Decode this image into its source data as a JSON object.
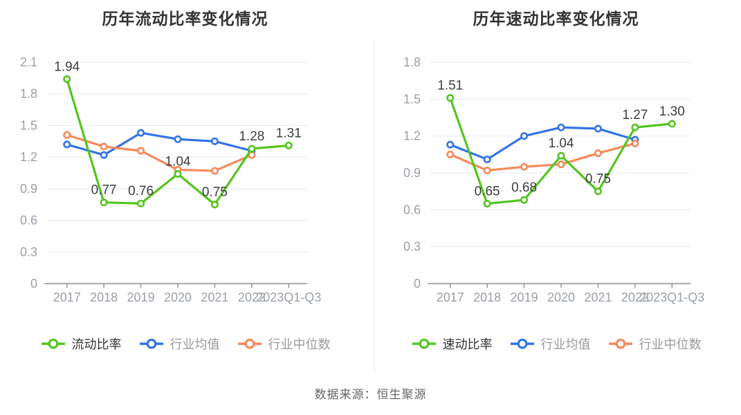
{
  "page": {
    "background": "#ffffff",
    "source_note": "数据来源：恒生聚源"
  },
  "chart_data": [
    {
      "type": "line",
      "title": "历年流动比率变化情况",
      "categories": [
        "2017",
        "2018",
        "2019",
        "2020",
        "2021",
        "2022",
        "2023Q1-Q3"
      ],
      "ylim": [
        0,
        2.1
      ],
      "yticks": [
        "0",
        "0.3",
        "0.6",
        "0.9",
        "1.2",
        "1.5",
        "1.8",
        "2.1"
      ],
      "grid": true,
      "legend_position": "bottom",
      "series": [
        {
          "name": "流动比率",
          "color": "#54c41e",
          "legend_text_color": "#333333",
          "values": [
            1.94,
            0.77,
            0.76,
            1.04,
            0.75,
            1.28,
            1.31
          ],
          "point_labels": [
            "1.94",
            "0.77",
            "0.76",
            "1.04",
            "0.75",
            "1.28",
            "1.31"
          ]
        },
        {
          "name": "行业均值",
          "color": "#3273e8",
          "legend_text_color": "#999999",
          "values": [
            1.32,
            1.22,
            1.43,
            1.37,
            1.35,
            1.26,
            null
          ],
          "point_labels": null
        },
        {
          "name": "行业中位数",
          "color": "#f7885a",
          "legend_text_color": "#999999",
          "values": [
            1.41,
            1.3,
            1.26,
            1.08,
            1.07,
            1.22,
            null
          ],
          "point_labels": null
        }
      ]
    },
    {
      "type": "line",
      "title": "历年速动比率变化情况",
      "categories": [
        "2017",
        "2018",
        "2019",
        "2020",
        "2021",
        "2022",
        "2023Q1-Q3"
      ],
      "ylim": [
        0,
        1.8
      ],
      "yticks": [
        "0",
        "0.3",
        "0.6",
        "0.9",
        "1.2",
        "1.5",
        "1.8"
      ],
      "grid": true,
      "legend_position": "bottom",
      "series": [
        {
          "name": "速动比率",
          "color": "#54c41e",
          "legend_text_color": "#333333",
          "values": [
            1.51,
            0.65,
            0.68,
            1.04,
            0.75,
            1.27,
            1.3
          ],
          "point_labels": [
            "1.51",
            "0.65",
            "0.68",
            "1.04",
            "0.75",
            "1.27",
            "1.30"
          ]
        },
        {
          "name": "行业均值",
          "color": "#3273e8",
          "legend_text_color": "#999999",
          "values": [
            1.13,
            1.01,
            1.2,
            1.27,
            1.26,
            1.17,
            null
          ],
          "point_labels": null
        },
        {
          "name": "行业中位数",
          "color": "#f7885a",
          "legend_text_color": "#999999",
          "values": [
            1.05,
            0.92,
            0.95,
            0.97,
            1.06,
            1.14,
            null
          ],
          "point_labels": null
        }
      ]
    }
  ]
}
